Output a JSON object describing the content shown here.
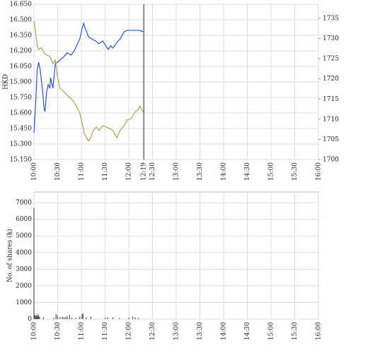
{
  "chart_data": [
    {
      "type": "line",
      "ylabel": "HKD",
      "now": "12:19",
      "xlim": [
        "10:00",
        "16:00"
      ],
      "xticks": [
        "10:00",
        "10:30",
        "11:00",
        "11:30",
        "12:00",
        "12:30",
        "13:00",
        "13:30",
        "14:00",
        "14:30",
        "15:00",
        "15:30",
        "16:00"
      ],
      "ylim": [
        15.15,
        16.65
      ],
      "yticks": [
        {
          "value": 15.15,
          "label": "15.150"
        },
        {
          "value": 15.3,
          "label": "15.300"
        },
        {
          "value": 15.45,
          "label": "15.450"
        },
        {
          "value": 15.6,
          "label": "15.600"
        },
        {
          "value": 15.75,
          "label": "15.750"
        },
        {
          "value": 15.9,
          "label": "15.900"
        },
        {
          "value": 16.05,
          "label": "16.050"
        },
        {
          "value": 16.2,
          "label": "16.200"
        },
        {
          "value": 16.35,
          "label": "16.350"
        },
        {
          "value": 16.5,
          "label": "16.500"
        },
        {
          "value": 16.65,
          "label": "16.650"
        }
      ],
      "y2lim": [
        1700,
        1738.5
      ],
      "y2ticks": [
        1700,
        1705,
        1710,
        1715,
        1720,
        1725,
        1730,
        1735
      ],
      "grid": true,
      "series": [
        {
          "color": "#3050c8",
          "x": [
            "10:00",
            "10:02",
            "10:04",
            "10:06",
            "10:08",
            "10:11",
            "10:13",
            "10:14",
            "10:16",
            "10:18",
            "10:20",
            "10:21",
            "10:24",
            "10:27",
            "10:30",
            "10:33",
            "10:38",
            "10:42",
            "10:47",
            "10:51",
            "10:56",
            "10:58",
            "11:01",
            "11:03",
            "11:04",
            "11:09",
            "11:13",
            "11:18",
            "11:22",
            "11:27",
            "11:31",
            "11:34",
            "11:37",
            "11:40",
            "11:45",
            "11:49",
            "11:54",
            "11:58",
            "12:03",
            "12:07",
            "12:12",
            "12:16",
            "12:19"
          ],
          "values": [
            15.409,
            15.668,
            16.009,
            16.091,
            16.009,
            15.805,
            15.634,
            15.614,
            15.805,
            15.873,
            15.839,
            15.941,
            15.839,
            16.077,
            16.091,
            16.111,
            16.145,
            16.18,
            16.159,
            16.2,
            16.282,
            16.316,
            16.418,
            16.466,
            16.432,
            16.336,
            16.316,
            16.295,
            16.268,
            16.295,
            16.248,
            16.214,
            16.248,
            16.227,
            16.282,
            16.316,
            16.384,
            16.398,
            16.398,
            16.398,
            16.398,
            16.391,
            16.384
          ]
        },
        {
          "color": "#a8a060",
          "axis": "y2",
          "x": [
            "10:00",
            "10:02",
            "10:04",
            "10:06",
            "10:09",
            "10:13",
            "10:16",
            "10:20",
            "10:24",
            "10:27",
            "10:30",
            "10:33",
            "10:38",
            "10:42",
            "10:47",
            "10:51",
            "10:56",
            "10:58",
            "11:01",
            "11:04",
            "11:09",
            "11:12",
            "11:15",
            "11:19",
            "11:22",
            "11:27",
            "11:31",
            "11:36",
            "11:40",
            "11:45",
            "11:49",
            "11:54",
            "11:58",
            "12:03",
            "12:07",
            "12:12",
            "12:14",
            "12:16",
            "12:19"
          ],
          "values": [
            1734.3,
            1731.7,
            1728.2,
            1727.3,
            1727.7,
            1726.4,
            1725.9,
            1725.6,
            1723.8,
            1724.7,
            1720.3,
            1717.7,
            1716.8,
            1715.9,
            1715.1,
            1714.2,
            1712.4,
            1711.6,
            1708.9,
            1706.3,
            1704.6,
            1705.4,
            1707.2,
            1708.1,
            1707.2,
            1708.4,
            1708.1,
            1707.7,
            1707.2,
            1705.4,
            1707.2,
            1708.4,
            1709.8,
            1710.2,
            1711.6,
            1712.4,
            1713.3,
            1712.4,
            1711.6
          ]
        }
      ]
    },
    {
      "type": "bar",
      "ylabel": "No. of shares (k)",
      "xlim": [
        "10:00",
        "16:00"
      ],
      "xticks": [
        "10:00",
        "10:30",
        "11:00",
        "11:30",
        "12:00",
        "12:30",
        "13:00",
        "13:30",
        "14:00",
        "14:30",
        "15:00",
        "15:30",
        "16:00"
      ],
      "ylim": [
        0,
        7640
      ],
      "yticks": [
        0,
        1000,
        2000,
        3000,
        4000,
        5000,
        6000,
        7000
      ],
      "grid": true,
      "color": "#555555",
      "x": [
        "10:00",
        "10:01",
        "10:02",
        "10:03",
        "10:04",
        "10:05",
        "10:06",
        "10:07",
        "10:12",
        "10:25",
        "10:28",
        "10:30",
        "10:33",
        "10:36",
        "10:38",
        "10:40",
        "10:42",
        "10:45",
        "10:48",
        "10:53",
        "10:58",
        "11:01",
        "11:02",
        "11:06",
        "11:12",
        "11:30",
        "11:33",
        "11:40",
        "11:48",
        "12:00",
        "12:05",
        "12:08",
        "12:12"
      ],
      "values": [
        6700,
        250,
        200,
        250,
        180,
        300,
        200,
        150,
        120,
        80,
        300,
        200,
        120,
        150,
        100,
        130,
        180,
        250,
        100,
        60,
        150,
        300,
        350,
        100,
        150,
        60,
        100,
        120,
        60,
        80,
        150,
        100,
        60
      ]
    }
  ]
}
